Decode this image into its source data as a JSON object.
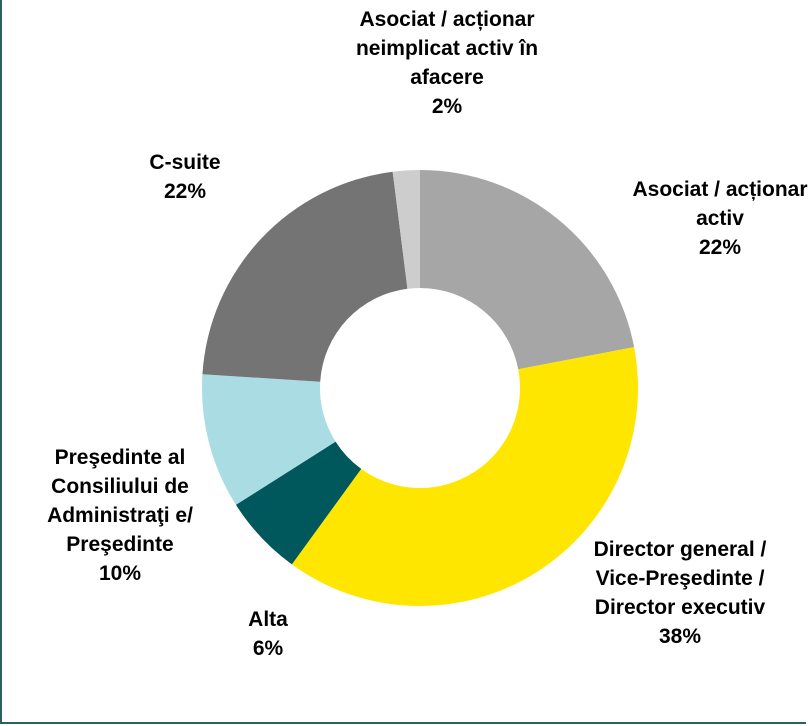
{
  "chart_data": {
    "type": "donut",
    "categories": [
      "Asociat / acționar activ",
      "Director general / Vice-Preşedinte / Director executiv",
      "Alta",
      "Preşedinte al Consiliului de Administraţi e/ Preşedinte",
      "C-suite",
      "Asociat / acționar neimplicat activ în afacere"
    ],
    "values": [
      22,
      38,
      6,
      10,
      22,
      2
    ],
    "value_labels": [
      "22%",
      "38%",
      "6%",
      "10%",
      "22%",
      "2%"
    ],
    "colors": [
      "#a6a6a6",
      "#ffe600",
      "#00575c",
      "#a9dde3",
      "#747474",
      "#cdcdcd"
    ]
  }
}
